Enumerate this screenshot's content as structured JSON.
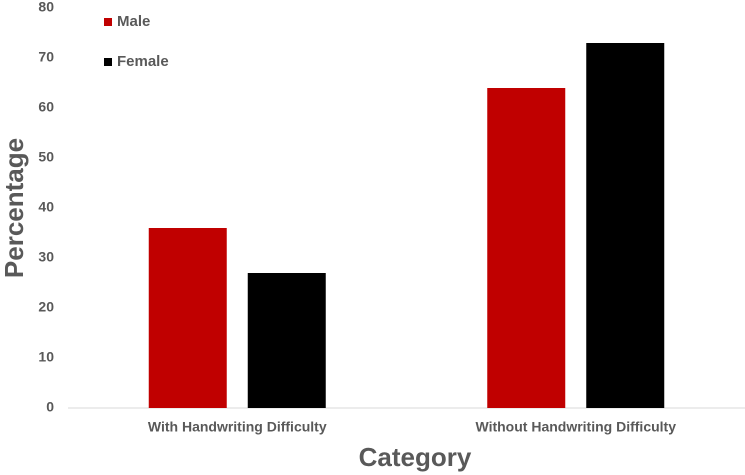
{
  "chart_data": {
    "type": "bar",
    "categories": [
      "With Handwriting Difficulty",
      "Without Handwriting Difficulty"
    ],
    "series": [
      {
        "name": "Male",
        "color": "#c00000",
        "values": [
          36,
          64
        ]
      },
      {
        "name": "Female",
        "color": "#000000",
        "values": [
          27,
          73
        ]
      }
    ],
    "x_label": "Category",
    "y_label": "Percentage",
    "ylim": [
      0,
      80
    ],
    "yticks": [
      0,
      10,
      20,
      30,
      40,
      50,
      60,
      70,
      80
    ],
    "grid": false,
    "legend": "top-left"
  }
}
